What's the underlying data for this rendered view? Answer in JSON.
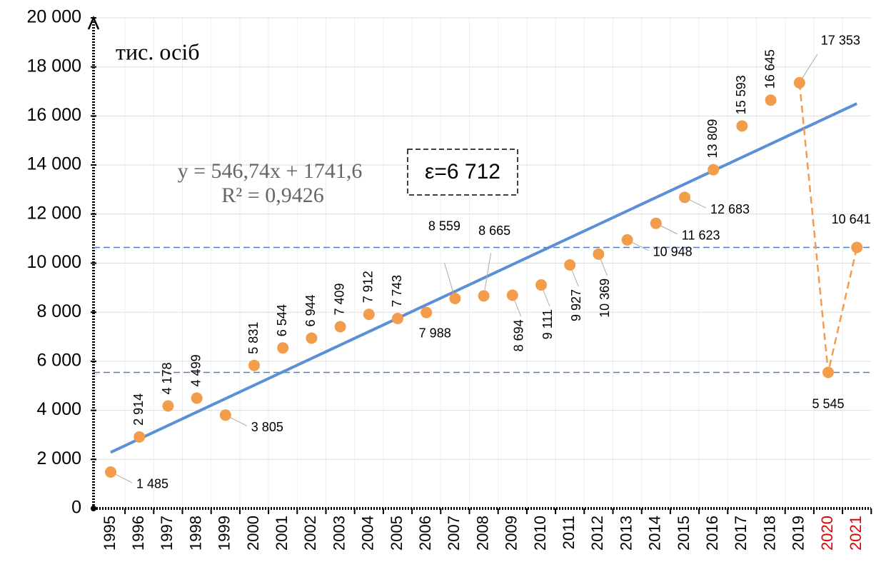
{
  "chart_data": {
    "type": "scatter",
    "unit_label": "тис. осіб",
    "categories": [
      "1995",
      "1996",
      "1997",
      "1998",
      "1999",
      "2000",
      "2001",
      "2002",
      "2003",
      "2004",
      "2005",
      "2006",
      "2007",
      "2008",
      "2009",
      "2010",
      "2011",
      "2012",
      "2013",
      "2014",
      "2015",
      "2016",
      "2017",
      "2018",
      "2019",
      "2020",
      "2021"
    ],
    "category_colors": [
      "#000",
      "#000",
      "#000",
      "#000",
      "#000",
      "#000",
      "#000",
      "#000",
      "#000",
      "#000",
      "#000",
      "#000",
      "#000",
      "#000",
      "#000",
      "#000",
      "#000",
      "#000",
      "#000",
      "#000",
      "#000",
      "#000",
      "#000",
      "#000",
      "#000",
      "#e00000",
      "#e00000"
    ],
    "series": [
      {
        "color": "#f39c4b",
        "values": [
          1485,
          2914,
          4178,
          4499,
          3805,
          5831,
          6544,
          6944,
          7409,
          7912,
          7743,
          7988,
          8559,
          8665,
          8694,
          9111,
          9927,
          10369,
          10948,
          11623,
          12683,
          13809,
          15593,
          16645,
          17353,
          5545,
          10641
        ],
        "value_labels": [
          "1 485",
          "2 914",
          "4 178",
          "4 499",
          "3 805",
          "5 831",
          "6 544",
          "6 944",
          "7 409",
          "7 912",
          "7 743",
          "7 988",
          "8 559",
          "8 665",
          "8 694",
          "9 111",
          "9 927",
          "10 369",
          "10 948",
          "11 623",
          "12 683",
          "13 809",
          "15 593",
          "16 645",
          "17 353",
          "5 545",
          "10 641"
        ]
      }
    ],
    "trendline": {
      "equation": "y = 546,74x + 1741,6",
      "r2_label": "R² = 0,9426",
      "slope": 546.74,
      "intercept": 1741.6,
      "color": "#5b8fd6"
    },
    "annotation": "ε=6 712",
    "ylim": [
      0,
      20000
    ],
    "yticks": [
      0,
      {
        "value": 2000,
        "label": "2 000"
      },
      {
        "value": 4000,
        "label": "4 000"
      },
      {
        "value": 6000,
        "label": "6 000"
      },
      {
        "value": 8000,
        "label": "8 000"
      },
      {
        "value": 10000,
        "label": "10 000"
      },
      {
        "value": 12000,
        "label": "12 000"
      },
      {
        "value": 14000,
        "label": "14 000"
      },
      {
        "value": 16000,
        "label": "16 000"
      },
      {
        "value": 18000,
        "label": "18 000"
      },
      {
        "value": 20000,
        "label": "20 000"
      }
    ],
    "grid": true
  }
}
